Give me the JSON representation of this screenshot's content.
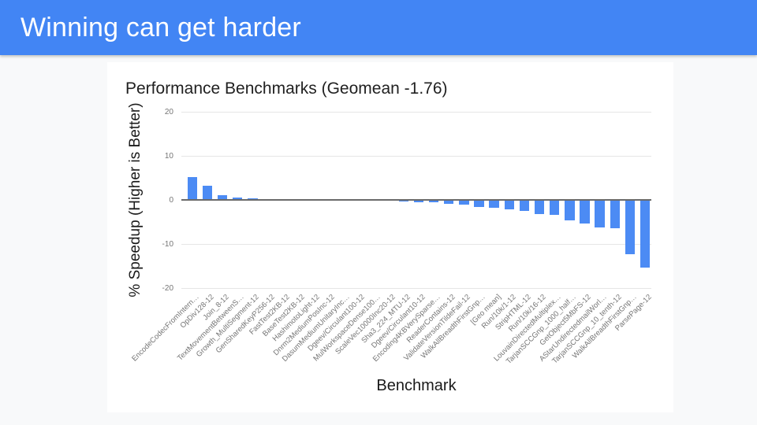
{
  "page": {
    "background": "#f8f9fa",
    "card_background": "#ffffff"
  },
  "header": {
    "title": "Winning can get harder",
    "background": "#4285f4",
    "text_color": "#ffffff"
  },
  "chart_data": {
    "type": "bar",
    "title": "Performance Benchmarks (Geomean -1.76)",
    "xlabel": "Benchmark",
    "ylabel": "% Speedup (Higher is Better)",
    "ylim": [
      -20,
      20
    ],
    "yticks": [
      20,
      10,
      0,
      -10,
      -20
    ],
    "grid": true,
    "legend": "none",
    "bar_color": "#4c8bf4",
    "gridline_color": "#e6e6e6",
    "zero_line_color": "#6a6a6a",
    "tick_label_color": "#757575",
    "category_label_color": "#757575",
    "categories": [
      "EncodeCodecFromIntern…",
      "OpDiv128-12",
      "Join_8-12",
      "TextMovementBetweenS…",
      "Growth_MultiSegment-12",
      "GenSharedKeyP256-12",
      "FastTest2KB-12",
      "BaseTest2KB-12",
      "HashimotoLight-12",
      "Dnrm2MediumPosInc-12",
      "DasumMediumUnitaryInc…",
      "Dgeev/Circulant100-12",
      "MulWorkspaceDense100…",
      "ScaleVec10000Inc20-12",
      "Sha3_224_MTU-12",
      "Dgeev/Circulant10-12",
      "Encoding4KBVerySparse…",
      "ReaderContains-12",
      "ValidateVersionTildeFail-12",
      "WalkAllBreadthFirstGnp…",
      "[Geo mean]",
      "Run/10k/1-12",
      "StripHTML-12",
      "Run/10k/16-12",
      "LouvainDirectedMultiplex…",
      "TarjanSCCGnp_1000_half…",
      "GetObject5MbFS-12",
      "AStarUndirectedmailWorl…",
      "TarjanSCCGnp_10_tenth-12",
      "WalkAllBreadthFirstGnp…",
      "ParsePage-12"
    ],
    "values": [
      5.1,
      3.2,
      1.0,
      0.6,
      0.4,
      0.15,
      0,
      0,
      0,
      0,
      0,
      0,
      0,
      0,
      -0.4,
      -0.45,
      -0.55,
      -0.85,
      -1.15,
      -1.6,
      -1.76,
      -2.1,
      -2.5,
      -3.3,
      -3.4,
      -4.6,
      -5.3,
      -6.2,
      -6.5,
      -12.4,
      -15.4
    ]
  }
}
